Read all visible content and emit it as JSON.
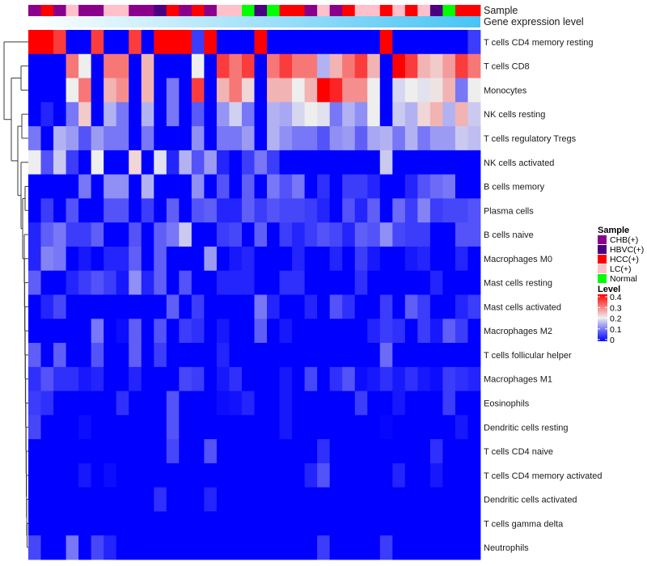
{
  "chart_data": {
    "type": "heatmap",
    "annotation_labels": {
      "sample": "Sample",
      "gene_expression": "Gene expression level"
    },
    "rows": [
      "T cells CD4 memory resting",
      "T cells CD8",
      "Monocytes",
      "NK cells resting",
      "T cells regulatory  Tregs",
      "NK cells activated",
      "B cells memory",
      "Plasma cells",
      "B cells naive",
      "Macrophages M0",
      "Mast cells resting",
      "Mast cells activated",
      "Macrophages M2",
      "T cells follicular helper",
      "Macrophages M1",
      "Eosinophils",
      "Dendritic cells resting",
      "T cells CD4 naive",
      "T cells CD4 memory activated",
      "Dendritic cells activated",
      "T cells gamma delta",
      "Neutrophils"
    ],
    "column_samples": [
      "CHB(+)",
      "HCC(+)",
      "CHB(+)",
      "LC(+)",
      "CHB(+)",
      "CHB(+)",
      "LC(+)",
      "LC(+)",
      "CHB(+)",
      "CHB(+)",
      "HBVC(+)",
      "HCC(+)",
      "CHB(+)",
      "HCC(+)",
      "CHB(+)",
      "LC(+)",
      "LC(+)",
      "Normal",
      "HBVC(+)",
      "Normal",
      "HCC(+)",
      "HCC(+)",
      "CHB(+)",
      "LC(+)",
      "CHB(+)",
      "HCC(+)",
      "LC(+)",
      "LC(+)",
      "HCC(+)",
      "LC(+)",
      "HCC(+)",
      "LC(+)",
      "HBVC(+)",
      "Normal",
      "HCC(+)",
      "HCC(+)"
    ],
    "gene_expression_gradient": {
      "low": "#ffffff",
      "high": "#48c4f4"
    },
    "values": [
      [
        0.4,
        0.4,
        0.35,
        0,
        0,
        0.35,
        0,
        0,
        0.35,
        0,
        0.4,
        0.4,
        0.4,
        0.05,
        0.4,
        0,
        0,
        0,
        0.4,
        0,
        0,
        0,
        0,
        0,
        0,
        0,
        0,
        0,
        0.4,
        0,
        0,
        0,
        0,
        0,
        0,
        0.05
      ],
      [
        0,
        0,
        0,
        0.3,
        0.2,
        0,
        0.3,
        0.3,
        0,
        0.25,
        0,
        0,
        0,
        0.2,
        0,
        0.35,
        0.3,
        0.35,
        0,
        0.3,
        0.35,
        0.3,
        0.3,
        0.15,
        0.25,
        0.3,
        0.35,
        0.25,
        0,
        0.4,
        0.35,
        0.25,
        0.23,
        0.27,
        0.35,
        0.3
      ],
      [
        0,
        0,
        0,
        0.2,
        0.3,
        0,
        0.25,
        0.28,
        0,
        0.25,
        0,
        0.1,
        0,
        0.35,
        0,
        0.25,
        0.3,
        0.22,
        0,
        0.25,
        0.25,
        0.2,
        0.25,
        0.4,
        0.37,
        0.28,
        0.28,
        0.2,
        0,
        0.18,
        0.2,
        0.19,
        0.21,
        0.25,
        0.1,
        0.2
      ],
      [
        0,
        0.03,
        0,
        0.1,
        0.23,
        0,
        0.15,
        0.1,
        0,
        0.15,
        0,
        0.1,
        0,
        0.075,
        0,
        0.125,
        0.175,
        0.1,
        0,
        0.15,
        0.14,
        0.18,
        0.2,
        0.19,
        0.1,
        0.15,
        0.12,
        0.2,
        0,
        0.17,
        0.15,
        0.22,
        0.25,
        0.15,
        0.25,
        0.17
      ],
      [
        0.1,
        0,
        0.15,
        0.13,
        0.07,
        0.13,
        0.1,
        0.1,
        0,
        0.1,
        0,
        0,
        0,
        0.12,
        0,
        0.1,
        0.1,
        0.13,
        0,
        0.15,
        0.12,
        0.1,
        0.1,
        0.07,
        0.12,
        0.13,
        0.08,
        0.14,
        0.15,
        0.1,
        0.15,
        0.1,
        0.13,
        0.13,
        0.17,
        0.16
      ],
      [
        0.2,
        0.07,
        0.17,
        0.05,
        0,
        0.2,
        0,
        0,
        0.22,
        0,
        0.19,
        0.03,
        0.15,
        0.07,
        0.13,
        0.03,
        0,
        0.05,
        0.1,
        0.05,
        0,
        0,
        0,
        0,
        0,
        0,
        0,
        0,
        0.17,
        0,
        0,
        0,
        0,
        0,
        0,
        0
      ],
      [
        0,
        0,
        0,
        0,
        0.1,
        0,
        0.12,
        0.12,
        0,
        0.15,
        0,
        0,
        0,
        0.12,
        0,
        0.07,
        0,
        0.08,
        0,
        0.1,
        0.07,
        0.1,
        0,
        0.04,
        0,
        0.05,
        0.05,
        0.03,
        0,
        0,
        0.03,
        0.07,
        0.09,
        0.1,
        0,
        0
      ],
      [
        0,
        0.05,
        0,
        0.07,
        0,
        0,
        0.07,
        0.07,
        0,
        0.05,
        0,
        0.08,
        0,
        0.07,
        0.08,
        0.03,
        0.03,
        0.08,
        0.05,
        0.07,
        0.06,
        0.06,
        0.05,
        0.03,
        0,
        0.07,
        0.03,
        0.08,
        0,
        0.09,
        0.05,
        0.11,
        0.05,
        0.06,
        0.06,
        0.07
      ],
      [
        0.03,
        0.08,
        0.1,
        0.05,
        0.05,
        0.08,
        0,
        0,
        0.07,
        0,
        0.08,
        0.1,
        0.17,
        0,
        0,
        0.05,
        0.06,
        0,
        0.08,
        0,
        0.05,
        0.03,
        0.05,
        0.07,
        0.06,
        0.03,
        0.08,
        0.07,
        0.12,
        0.06,
        0.05,
        0.05,
        0,
        0,
        0.07,
        0.07
      ],
      [
        0.03,
        0.11,
        0.1,
        0,
        0.02,
        0,
        0.03,
        0.03,
        0.08,
        0,
        0.08,
        0,
        0,
        0,
        0.13,
        0,
        0.02,
        0.03,
        0,
        0,
        0,
        0.03,
        0,
        0,
        0.03,
        0,
        0.05,
        0.02,
        0,
        0,
        0.02,
        0.03,
        0,
        0,
        0.03,
        0
      ],
      [
        0.08,
        0,
        0,
        0.03,
        0.05,
        0.07,
        0.05,
        0.02,
        0.12,
        0.03,
        0.08,
        0,
        0.07,
        0,
        0,
        0.03,
        0.03,
        0.03,
        0,
        0,
        0.04,
        0.04,
        0,
        0,
        0,
        0,
        0.04,
        0,
        0,
        0,
        0,
        0,
        0.03,
        0,
        0,
        0
      ],
      [
        0,
        0.03,
        0.06,
        0,
        0,
        0,
        0,
        0,
        0,
        0,
        0,
        0.08,
        0,
        0.05,
        0,
        0,
        0,
        0,
        0.1,
        0.03,
        0,
        0,
        0.03,
        0,
        0.07,
        0.04,
        0,
        0,
        0.05,
        0,
        0.08,
        0.05,
        0,
        0,
        0.03,
        0.05
      ],
      [
        0,
        0,
        0,
        0,
        0,
        0.1,
        0,
        0.01,
        0.08,
        0,
        0.07,
        0,
        0.05,
        0.04,
        0,
        0.02,
        0,
        0,
        0.08,
        0,
        0.02,
        0,
        0,
        0,
        0,
        0,
        0,
        0.03,
        0.05,
        0.04,
        0,
        0.05,
        0.02,
        0.08,
        0.05,
        0
      ],
      [
        0.08,
        0,
        0.08,
        0,
        0,
        0.07,
        0,
        0,
        0.08,
        0,
        0.05,
        0,
        0,
        0,
        0,
        0.03,
        0,
        0,
        0,
        0,
        0,
        0,
        0,
        0,
        0,
        0,
        0,
        0,
        0.09,
        0,
        0,
        0,
        0,
        0,
        0,
        0
      ],
      [
        0.04,
        0.07,
        0.04,
        0.04,
        0.02,
        0.03,
        0,
        0,
        0.03,
        0,
        0,
        0,
        0.06,
        0.05,
        0,
        0.02,
        0.04,
        0,
        0,
        0,
        0.02,
        0,
        0.06,
        0,
        0.04,
        0.07,
        0.01,
        0.02,
        0.04,
        0.02,
        0.04,
        0.02,
        0.01,
        0.05,
        0.04,
        0.03
      ],
      [
        0.05,
        0.04,
        0,
        0,
        0,
        0,
        0,
        0.04,
        0,
        0,
        0,
        0.07,
        0,
        0,
        0,
        0.01,
        0.015,
        0.03,
        0,
        0,
        0.02,
        0,
        0,
        0,
        0,
        0,
        0.05,
        0,
        0,
        0.02,
        0,
        0,
        0,
        0.05,
        0,
        0
      ],
      [
        0.06,
        0,
        0,
        0,
        0.01,
        0,
        0,
        0,
        0,
        0,
        0,
        0.07,
        0,
        0,
        0,
        0,
        0,
        0,
        0,
        0,
        0.02,
        0,
        0,
        0,
        0,
        0,
        0,
        0,
        0.005,
        0,
        0,
        0,
        0,
        0,
        0.02,
        0
      ],
      [
        0,
        0,
        0,
        0,
        0,
        0,
        0,
        0,
        0,
        0,
        0,
        0.06,
        0,
        0,
        0.07,
        0,
        0,
        0,
        0,
        0,
        0,
        0,
        0,
        0.04,
        0,
        0,
        0,
        0,
        0,
        0,
        0,
        0,
        0.04,
        0,
        0,
        0
      ],
      [
        0,
        0,
        0,
        0,
        0.02,
        0,
        0.01,
        0,
        0,
        0,
        0,
        0,
        0,
        0,
        0,
        0,
        0,
        0,
        0,
        0,
        0,
        0,
        0.03,
        0.07,
        0,
        0,
        0,
        0,
        0,
        0.03,
        0,
        0,
        0.02,
        0,
        0,
        0
      ],
      [
        0,
        0,
        0,
        0,
        0,
        0,
        0,
        0,
        0,
        0,
        0.04,
        0,
        0,
        0,
        0.03,
        0,
        0,
        0,
        0,
        0,
        0,
        0,
        0,
        0,
        0,
        0,
        0,
        0,
        0,
        0,
        0,
        0,
        0,
        0,
        0,
        0
      ],
      [
        0,
        0,
        0,
        0,
        0,
        0,
        0,
        0,
        0,
        0,
        0,
        0,
        0,
        0,
        0,
        0,
        0,
        0,
        0,
        0,
        0,
        0,
        0,
        0,
        0,
        0,
        0,
        0,
        0,
        0,
        0,
        0,
        0,
        0,
        0,
        0
      ],
      [
        0.06,
        0,
        0,
        0.1,
        0,
        0.06,
        0.03,
        0,
        0,
        0,
        0,
        0,
        0,
        0,
        0,
        0,
        0,
        0,
        0,
        0,
        0,
        0,
        0,
        0.05,
        0,
        0,
        0,
        0,
        0.05,
        0,
        0,
        0,
        0,
        0,
        0,
        0
      ]
    ],
    "color_scale": {
      "min": 0,
      "mid": 0.2,
      "max": 0.4,
      "low_color": "#0000ff",
      "mid_color": "#eeeeee",
      "high_color": "#ff0000"
    },
    "legend_sample": {
      "title": "Sample",
      "items": [
        {
          "label": "CHB(+)",
          "color": "#8b008b"
        },
        {
          "label": "HBVC(+)",
          "color": "#4b0082"
        },
        {
          "label": "HCC(+)",
          "color": "#ff0000"
        },
        {
          "label": "LC(+)",
          "color": "#ffc0cb"
        },
        {
          "label": "Normal",
          "color": "#00ff00"
        }
      ]
    },
    "legend_level": {
      "title": "Level",
      "ticks": [
        "0.4",
        "0.3",
        "0.2",
        "0.1",
        "0"
      ],
      "tick_values": [
        0.4,
        0.3,
        0.2,
        0.1,
        0
      ]
    },
    "row_dendrogram": true,
    "legend_placement": "right"
  }
}
